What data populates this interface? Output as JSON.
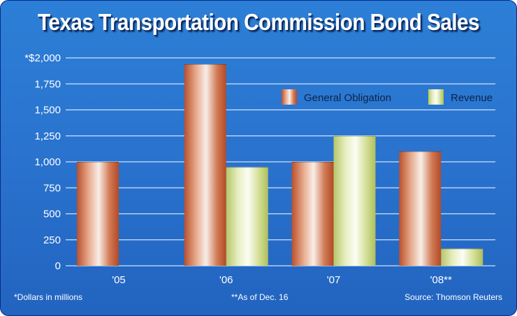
{
  "chart_data": {
    "type": "bar",
    "title": "Texas Transportation Commission Bond Sales",
    "categories": [
      "'05",
      "'06",
      "'07",
      "'08**"
    ],
    "series": [
      {
        "name": "General Obligation",
        "values": [
          1000,
          1940,
          1000,
          1100
        ]
      },
      {
        "name": "Revenue",
        "values": [
          null,
          950,
          1250,
          165
        ]
      }
    ],
    "y_ticks": [
      "*$2,000",
      "1,750",
      "1,500",
      "1,250",
      "1,000",
      "750",
      "500",
      "250",
      "0"
    ],
    "ylim": [
      0,
      2000
    ],
    "ylabel": "",
    "xlabel": "",
    "legend_position": "top-right",
    "grid": true
  },
  "footnotes": {
    "left": "*Dollars in millions",
    "middle": "**As of Dec. 16",
    "right": "Source: Thomson Reuters"
  },
  "colors": {
    "general_obligation": "#c8613a",
    "revenue": "#cfdc8f",
    "gridline": "#cfe3fb"
  }
}
